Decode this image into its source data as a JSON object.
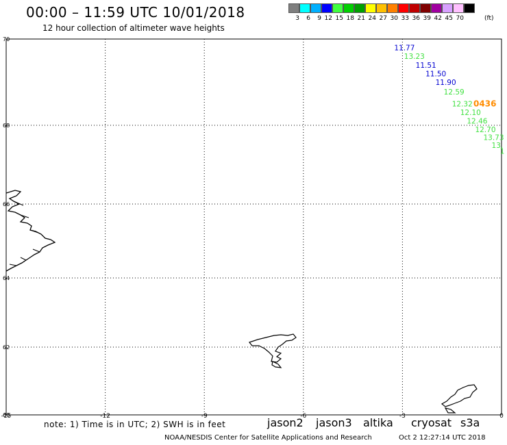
{
  "header": {
    "title": "00:00 – 11:59 UTC 10/01/2018",
    "subtitle": "12 hour collection of altimeter wave heights"
  },
  "legend": {
    "colors": [
      "#7f7f7f",
      "#00ffff",
      "#00b0ff",
      "#0000ff",
      "#40ff40",
      "#00d000",
      "#00a000",
      "#ffff00",
      "#ffc000",
      "#ff8000",
      "#ff0000",
      "#c00000",
      "#800000",
      "#a000a0",
      "#d8a0ff",
      "#ffc0ff",
      "#000000"
    ],
    "labels": [
      "3",
      "6",
      "9",
      "12",
      "15",
      "18",
      "21",
      "24",
      "27",
      "30",
      "33",
      "36",
      "39",
      "42",
      "45",
      "70"
    ],
    "unit": "(ft)"
  },
  "map": {
    "lon_ticks": [
      "-15",
      "-12",
      "-9",
      "-6",
      "-3",
      "0"
    ],
    "lat_ticks": [
      "70",
      "68",
      "66",
      "64",
      "62",
      "60"
    ],
    "observations": [
      {
        "lon": -3.25,
        "lat": 69.8,
        "value": "11.77",
        "color": "#0000d0"
      },
      {
        "lon": -2.95,
        "lat": 69.6,
        "value": "13.23",
        "color": "#40e040"
      },
      {
        "lon": -2.6,
        "lat": 69.4,
        "value": "11.51",
        "color": "#0000d0"
      },
      {
        "lon": -2.3,
        "lat": 69.2,
        "value": "11.50",
        "color": "#0000d0"
      },
      {
        "lon": -2.0,
        "lat": 69.0,
        "value": "11.90",
        "color": "#0000d0"
      },
      {
        "lon": -1.75,
        "lat": 68.78,
        "value": "12.59",
        "color": "#40e040"
      },
      {
        "lon": -1.5,
        "lat": 68.5,
        "value": "12.32",
        "color": "#40e040"
      },
      {
        "lon": -1.25,
        "lat": 68.3,
        "value": "12.10",
        "color": "#40e040"
      },
      {
        "lon": -1.05,
        "lat": 68.1,
        "value": "12.46",
        "color": "#40e040"
      },
      {
        "lon": -0.8,
        "lat": 67.9,
        "value": "12.70",
        "color": "#40e040"
      },
      {
        "lon": -0.55,
        "lat": 67.7,
        "value": "13.73",
        "color": "#40e040"
      },
      {
        "lon": -0.3,
        "lat": 67.5,
        "value": "13.",
        "color": "#40e040"
      },
      {
        "lon": -0.05,
        "lat": 67.35,
        "value": "1",
        "color": "#40e040"
      }
    ],
    "time_label": {
      "lon": -0.85,
      "lat": 68.5,
      "value": "0436",
      "color": "#ff8c00"
    }
  },
  "footer": {
    "note": "note: 1) Time is in UTC; 2) SWH is in feet",
    "satellites": [
      {
        "name": "jason2",
        "color": "#0000ff"
      },
      {
        "name": "jason3",
        "color": "#00a000"
      },
      {
        "name": "altika",
        "color": "#ff8c00"
      },
      {
        "name": "cryosat",
        "color": "#d00000"
      },
      {
        "name": "s3a",
        "color": "#800000"
      }
    ],
    "credit": "NOAA/NESDIS Center for Satellite Applications and Research",
    "timestamp": "Oct  2 12:27:14 UTC 2018"
  }
}
